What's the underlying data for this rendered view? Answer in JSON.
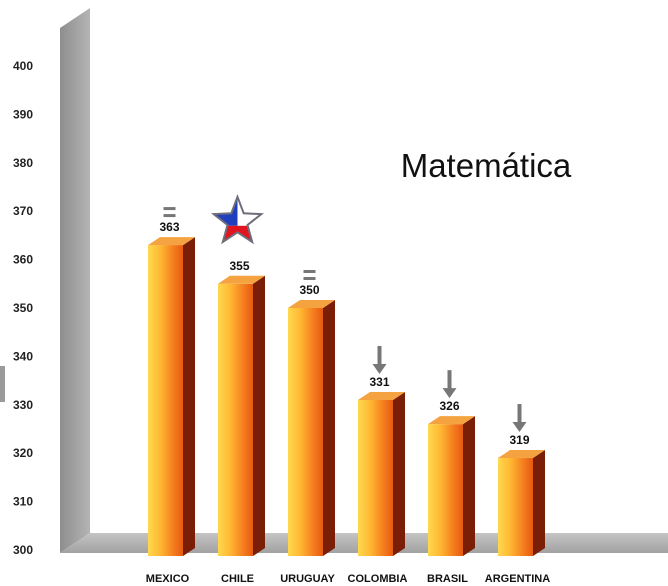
{
  "chart_data": {
    "type": "bar",
    "title": "Matemática",
    "categories": [
      "MEXICO",
      "CHILE",
      "URUGUAY",
      "COLOMBIA",
      "BRASIL",
      "ARGENTINA"
    ],
    "values": [
      363,
      355,
      350,
      331,
      326,
      319
    ],
    "ylim": [
      300,
      400
    ],
    "yticks": [
      300,
      310,
      320,
      330,
      340,
      350,
      360,
      370,
      380,
      390,
      400
    ],
    "markers": [
      "equal",
      "chile-flag-star",
      "equal",
      "down-arrow",
      "down-arrow",
      "down-arrow"
    ],
    "grid": false,
    "colors": {
      "bar_front": "#f58a1f",
      "bar_light": "#ffd24a",
      "bar_side": "#7a1e08",
      "bar_top": "#f4a340",
      "wall": "#a9a9a9",
      "marker": "#777777",
      "star_blue": "#1f3fbf",
      "star_red": "#e0151f"
    }
  }
}
